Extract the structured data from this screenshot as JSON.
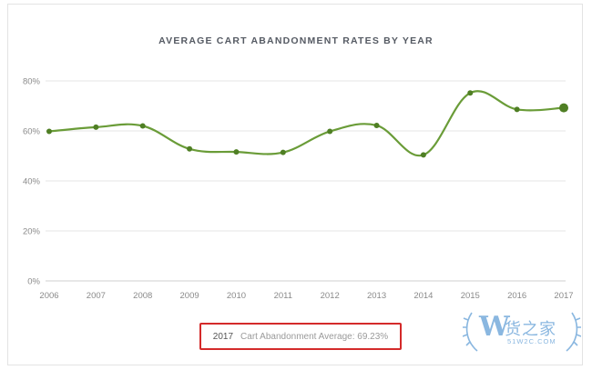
{
  "chart_data": {
    "type": "line",
    "title": "AVERAGE CART ABANDONMENT RATES BY YEAR",
    "x": [
      "2006",
      "2007",
      "2008",
      "2009",
      "2010",
      "2011",
      "2012",
      "2013",
      "2014",
      "2015",
      "2016",
      "2017"
    ],
    "series": [
      {
        "values": [
          59.8,
          61.5,
          62.0,
          52.8,
          51.6,
          51.4,
          59.8,
          62.2,
          50.4,
          75.2,
          68.6,
          69.23
        ]
      }
    ],
    "yticks": [
      "0%",
      "20%",
      "40%",
      "60%",
      "80%"
    ],
    "ylim": [
      0,
      80
    ],
    "grid": true,
    "line_color": "#6a9c38",
    "marker_color": "#4f7f24",
    "highlight_last_point": true
  },
  "footer": {
    "year": "2017",
    "label": "Cart Abandonment Average: 69.23%",
    "border_color": "#d42a2a"
  },
  "watermark": {
    "logo_letter": "W",
    "text": "货之家",
    "url": "51W2C.COM"
  }
}
